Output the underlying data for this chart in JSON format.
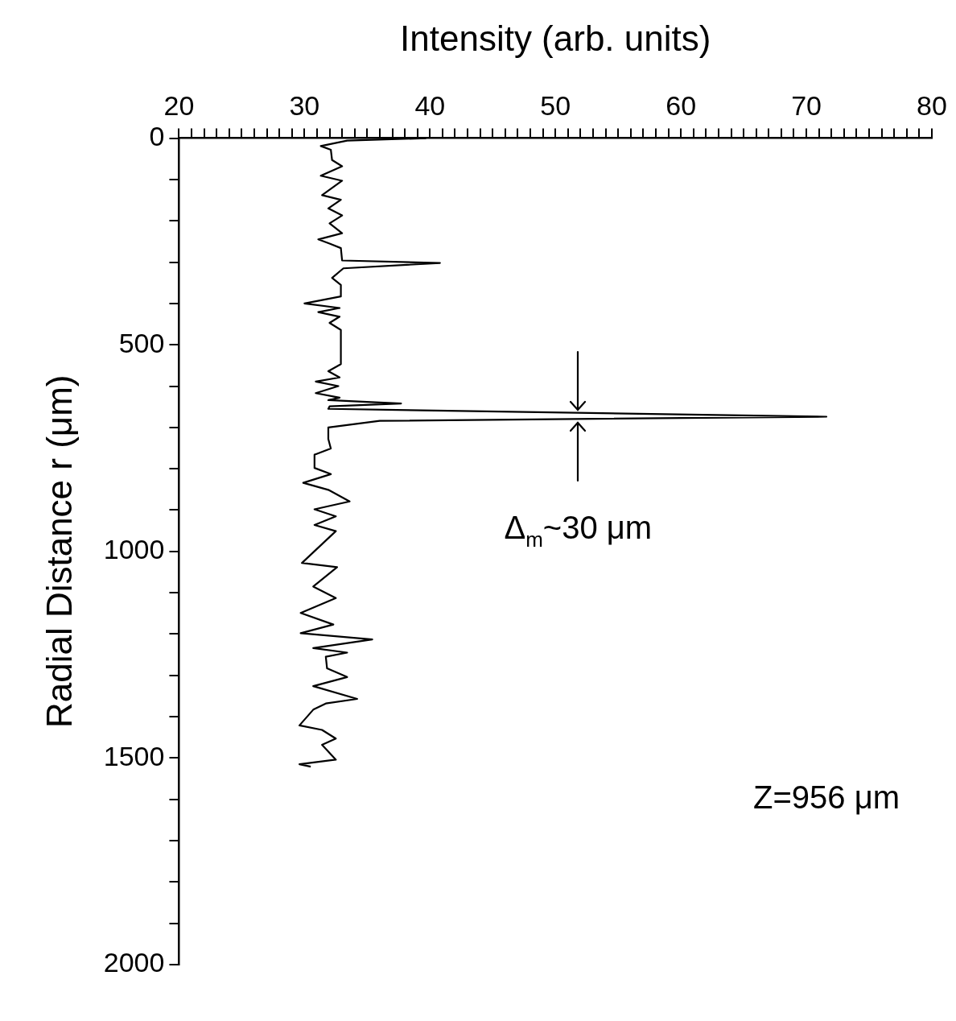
{
  "chart_data": {
    "type": "line",
    "xlabel": "Intensity (arb. units)",
    "ylabel": "Radial Distance r (μm)",
    "annotations": [
      "Z=956 μm",
      {
        "text": "Δ$_{m}$~30 μm",
        "x": 51.8,
        "y": 674
      }
    ],
    "color": "#000000",
    "marker": "none",
    "line_style": "solid",
    "x": [
      39.7,
      33.4,
      31.3,
      32.1,
      32.2,
      33.0,
      31.3,
      33.0,
      31.4,
      32.9,
      31.9,
      33.0,
      32.0,
      33.0,
      31.1,
      32.0,
      32.9,
      33.0,
      40.8,
      33.1,
      32.2,
      32.9,
      32.9,
      30.0,
      32.8,
      31.1,
      32.8,
      32.0,
      32.9,
      32.9,
      31.9,
      32.8,
      30.9,
      32.7,
      30.9,
      32.8,
      31.9,
      37.7,
      32.0,
      31.9,
      71.6,
      36.0,
      31.9,
      31.9,
      32.1,
      30.8,
      30.8,
      32.1,
      29.9,
      31.9,
      33.6,
      30.8,
      32.5,
      30.8,
      32.5,
      29.8,
      32.6,
      30.7,
      32.5,
      29.7,
      32.3,
      29.7,
      35.4,
      30.7,
      33.4,
      31.7,
      31.8,
      33.4,
      30.7,
      34.2,
      31.7,
      30.7,
      29.6,
      31.4,
      32.5,
      31.4,
      32.5,
      29.6,
      30.5
    ],
    "values": [
      0,
      6,
      19,
      28,
      53,
      68,
      91,
      103,
      138,
      149,
      170,
      187,
      206,
      230,
      245,
      255,
      266,
      296,
      302,
      315,
      338,
      355,
      383,
      400,
      411,
      421,
      432,
      447,
      464,
      547,
      564,
      579,
      589,
      600,
      617,
      628,
      634,
      642,
      649,
      655,
      674,
      684,
      700,
      728,
      751,
      766,
      798,
      813,
      834,
      851,
      879,
      898,
      915,
      936,
      951,
      1028,
      1038,
      1085,
      1113,
      1149,
      1177,
      1198,
      1213,
      1234,
      1245,
      1255,
      1283,
      1304,
      1326,
      1357,
      1368,
      1383,
      1421,
      1432,
      1453,
      1468,
      1504,
      1515,
      1521
    ],
    "ylim": [
      2000,
      0
    ],
    "yticks": [
      0,
      {
        "value": 100,
        "label": null
      },
      {
        "value": 200,
        "label": null
      },
      {
        "value": 300,
        "label": null
      },
      {
        "value": 400,
        "label": null
      },
      500,
      {
        "value": 600,
        "label": null
      },
      {
        "value": 700,
        "label": null
      },
      {
        "value": 800,
        "label": null
      },
      {
        "value": 900,
        "label": null
      },
      1000,
      {
        "value": 1100,
        "label": null
      },
      {
        "value": 1200,
        "label": null
      },
      {
        "value": 1300,
        "label": null
      },
      {
        "value": 1400,
        "label": null
      },
      1500,
      {
        "value": 1600,
        "label": null
      },
      {
        "value": 1700,
        "label": null
      },
      {
        "value": 1800,
        "label": null
      },
      {
        "value": 1900,
        "label": null
      },
      2000
    ],
    "xlim": [
      20,
      80
    ],
    "xticks": [
      20,
      {
        "value": 21,
        "label": null
      },
      {
        "value": 22,
        "label": null
      },
      {
        "value": 23,
        "label": null
      },
      {
        "value": 24,
        "label": null
      },
      {
        "value": 25,
        "label": null
      },
      {
        "value": 26,
        "label": null
      },
      {
        "value": 27,
        "label": null
      },
      {
        "value": 28,
        "label": null
      },
      {
        "value": 29,
        "label": null
      },
      30,
      {
        "value": 31,
        "label": null
      },
      {
        "value": 32,
        "label": null
      },
      {
        "value": 33,
        "label": null
      },
      {
        "value": 34,
        "label": null
      },
      {
        "value": 35,
        "label": null
      },
      {
        "value": 36,
        "label": null
      },
      {
        "value": 37,
        "label": null
      },
      {
        "value": 38,
        "label": null
      },
      {
        "value": 39,
        "label": null
      },
      40,
      {
        "value": 41,
        "label": null
      },
      {
        "value": 42,
        "label": null
      },
      {
        "value": 43,
        "label": null
      },
      {
        "value": 44,
        "label": null
      },
      {
        "value": 45,
        "label": null
      },
      {
        "value": 46,
        "label": null
      },
      {
        "value": 47,
        "label": null
      },
      {
        "value": 48,
        "label": null
      },
      {
        "value": 49,
        "label": null
      },
      50,
      {
        "value": 51,
        "label": null
      },
      {
        "value": 52,
        "label": null
      },
      {
        "value": 53,
        "label": null
      },
      {
        "value": 54,
        "label": null
      },
      {
        "value": 55,
        "label": null
      },
      {
        "value": 56,
        "label": null
      },
      {
        "value": 57,
        "label": null
      },
      {
        "value": 58,
        "label": null
      },
      {
        "value": 59,
        "label": null
      },
      60,
      {
        "value": 61,
        "label": null
      },
      {
        "value": 62,
        "label": null
      },
      {
        "value": 63,
        "label": null
      },
      {
        "value": 64,
        "label": null
      },
      {
        "value": 65,
        "label": null
      },
      {
        "value": 66,
        "label": null
      },
      {
        "value": 67,
        "label": null
      },
      {
        "value": 68,
        "label": null
      },
      {
        "value": 69,
        "label": null
      },
      70,
      {
        "value": 71,
        "label": null
      },
      {
        "value": 72,
        "label": null
      },
      {
        "value": 73,
        "label": null
      },
      {
        "value": 74,
        "label": null
      },
      {
        "value": 75,
        "label": null
      },
      {
        "value": 76,
        "label": null
      },
      {
        "value": 77,
        "label": null
      },
      {
        "value": 78,
        "label": null
      },
      {
        "value": 79,
        "label": null
      },
      80
    ]
  }
}
